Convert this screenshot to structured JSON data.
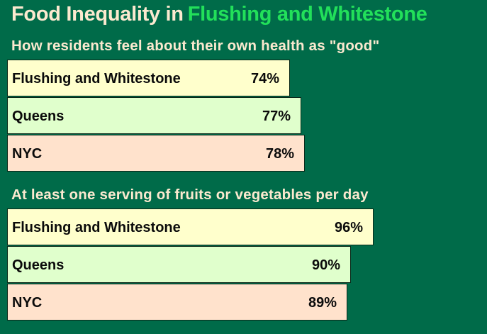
{
  "title": {
    "prefix": "Food Inequality in",
    "highlight": "Flushing and Whitestone"
  },
  "colors": {
    "background": "#006b49",
    "title_prefix": "#fbe9cf",
    "title_highlight": "#22e05a",
    "bar_colors": [
      "#ffffcc",
      "#e0ffcc",
      "#ffe2cc"
    ]
  },
  "chart_data": [
    {
      "type": "bar",
      "orientation": "horizontal",
      "title": "How residents feel about their own health as \"good\"",
      "categories": [
        "Flushing and Whitestone",
        "Queens",
        "NYC"
      ],
      "values": [
        74,
        77,
        78
      ],
      "value_labels": [
        "74%",
        "77%",
        "78%"
      ],
      "unit": "%"
    },
    {
      "type": "bar",
      "orientation": "horizontal",
      "title": "At least one serving of fruits or vegetables per day",
      "categories": [
        "Flushing and Whitestone",
        "Queens",
        "NYC"
      ],
      "values": [
        96,
        90,
        89
      ],
      "value_labels": [
        "96%",
        "90%",
        "89%"
      ],
      "unit": "%"
    }
  ]
}
